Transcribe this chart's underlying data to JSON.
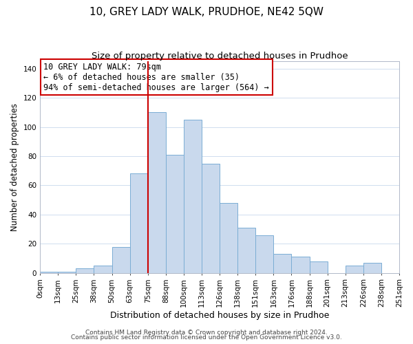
{
  "title": "10, GREY LADY WALK, PRUDHOE, NE42 5QW",
  "subtitle": "Size of property relative to detached houses in Prudhoe",
  "xlabel": "Distribution of detached houses by size in Prudhoe",
  "ylabel": "Number of detached properties",
  "bar_labels": [
    "0sqm",
    "13sqm",
    "25sqm",
    "38sqm",
    "50sqm",
    "63sqm",
    "75sqm",
    "88sqm",
    "100sqm",
    "113sqm",
    "126sqm",
    "138sqm",
    "151sqm",
    "163sqm",
    "176sqm",
    "188sqm",
    "201sqm",
    "213sqm",
    "226sqm",
    "238sqm",
    "251sqm"
  ],
  "bar_values": [
    1,
    1,
    3,
    5,
    18,
    68,
    110,
    81,
    105,
    75,
    48,
    31,
    26,
    13,
    11,
    8,
    0,
    5,
    7,
    0
  ],
  "bar_color": "#c9d9ed",
  "bar_edge_color": "#7aadd4",
  "vline_x": 6,
  "vline_color": "#cc0000",
  "annotation_title": "10 GREY LADY WALK: 79sqm",
  "annotation_line1": "← 6% of detached houses are smaller (35)",
  "annotation_line2": "94% of semi-detached houses are larger (564) →",
  "annotation_box_color": "#ffffff",
  "annotation_box_edge": "#cc0000",
  "ylim": [
    0,
    145
  ],
  "footer1": "Contains HM Land Registry data © Crown copyright and database right 2024.",
  "footer2": "Contains public sector information licensed under the Open Government Licence v3.0.",
  "title_fontsize": 11,
  "subtitle_fontsize": 9.5,
  "xlabel_fontsize": 9,
  "ylabel_fontsize": 8.5,
  "tick_fontsize": 7.5,
  "annotation_fontsize": 8.5,
  "footer_fontsize": 6.5
}
